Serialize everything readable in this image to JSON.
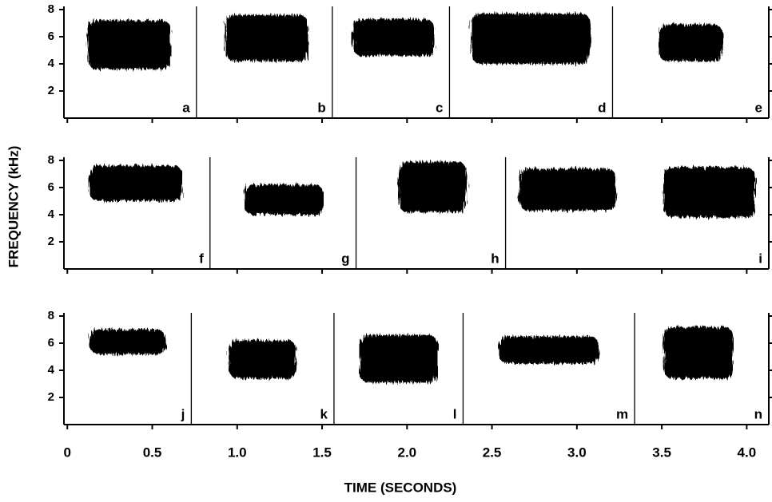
{
  "chart_data": [
    {
      "type": "spectrogram",
      "xlim": [
        -0.02,
        4.13
      ],
      "ylim": [
        0,
        8
      ],
      "yticks": [
        2,
        4,
        6,
        8
      ],
      "dividers": [
        0.76,
        1.56,
        2.25,
        3.21
      ],
      "panels": [
        {
          "label": "a",
          "calls": [
            {
              "time": [
                0.12,
                0.61
              ],
              "frequency": [
                3.6,
                7.2
              ]
            }
          ]
        },
        {
          "label": "b",
          "calls": [
            {
              "time": [
                0.93,
                1.42
              ],
              "frequency": [
                4.2,
                7.6
              ]
            }
          ]
        },
        {
          "label": "c",
          "calls": [
            {
              "time": [
                1.68,
                2.16
              ],
              "frequency": [
                4.6,
                7.3
              ]
            }
          ]
        },
        {
          "label": "d",
          "calls": [
            {
              "time": [
                2.38,
                3.08
              ],
              "frequency": [
                4.0,
                7.7
              ]
            }
          ]
        },
        {
          "label": "e",
          "calls": [
            {
              "time": [
                3.48,
                3.86
              ],
              "frequency": [
                4.2,
                6.9
              ]
            }
          ]
        }
      ]
    },
    {
      "type": "spectrogram",
      "xlim": [
        -0.02,
        4.13
      ],
      "ylim": [
        0,
        8
      ],
      "yticks": [
        2,
        4,
        6,
        8
      ],
      "ylabel": "FREQUENCY (kHz)",
      "dividers": [
        0.84,
        1.7,
        2.58
      ],
      "panels": [
        {
          "label": "f",
          "calls": [
            {
              "time": [
                0.13,
                0.68
              ],
              "frequency": [
                5.0,
                7.6
              ]
            }
          ]
        },
        {
          "label": "g",
          "calls": [
            {
              "time": [
                1.04,
                1.51
              ],
              "frequency": [
                4.0,
                6.2
              ]
            }
          ]
        },
        {
          "label": "h",
          "calls": [
            {
              "time": [
                1.95,
                2.35
              ],
              "frequency": [
                4.2,
                7.9
              ]
            }
          ]
        },
        {
          "label": "i",
          "calls": [
            {
              "time": [
                2.66,
                3.23
              ],
              "frequency": [
                4.3,
                7.4
              ]
            },
            {
              "time": [
                3.51,
                4.05
              ],
              "frequency": [
                3.8,
                7.5
              ]
            }
          ]
        }
      ]
    },
    {
      "type": "spectrogram",
      "xlim": [
        -0.02,
        4.13
      ],
      "ylim": [
        0,
        8
      ],
      "yticks": [
        2,
        4,
        6,
        8
      ],
      "xlabel": "TIME (SECONDS)",
      "xticks": [
        0,
        0.5,
        {
          "value": 1,
          "label": "1.0"
        },
        1.5,
        {
          "value": 2,
          "label": "2.0"
        },
        2.5,
        {
          "value": 3,
          "label": "3.0"
        },
        3.5,
        {
          "value": 4,
          "label": "4.0"
        }
      ],
      "dividers": [
        0.73,
        1.57,
        2.33,
        3.34
      ],
      "panels": [
        {
          "label": "j",
          "calls": [
            {
              "time": [
                0.13,
                0.58
              ],
              "frequency": [
                5.2,
                7.0
              ]
            }
          ]
        },
        {
          "label": "k",
          "calls": [
            {
              "time": [
                0.95,
                1.35
              ],
              "frequency": [
                3.4,
                6.2
              ]
            }
          ]
        },
        {
          "label": "l",
          "calls": [
            {
              "time": [
                1.72,
                2.18
              ],
              "frequency": [
                3.1,
                6.6
              ]
            }
          ]
        },
        {
          "label": "m",
          "calls": [
            {
              "time": [
                2.54,
                3.13
              ],
              "frequency": [
                4.5,
                6.5
              ]
            }
          ]
        },
        {
          "label": "n",
          "calls": [
            {
              "time": [
                3.51,
                3.92
              ],
              "frequency": [
                3.4,
                7.2
              ]
            }
          ]
        }
      ]
    }
  ]
}
